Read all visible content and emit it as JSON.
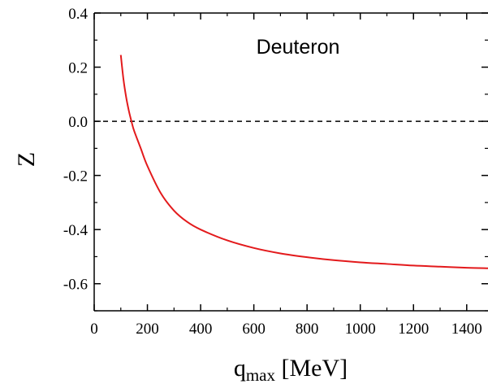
{
  "chart_data": {
    "type": "line",
    "title": "",
    "annotation": "Deuteron",
    "xlabel_main": "q",
    "xlabel_sub": "max",
    "xlabel_unit": " [MeV]",
    "ylabel": "Z",
    "xlim": [
      0,
      1480
    ],
    "ylim": [
      -0.7,
      0.4
    ],
    "x_ticks": [
      0,
      200,
      400,
      600,
      800,
      1000,
      1200,
      1400
    ],
    "x_tick_labels": [
      "0",
      "200",
      "400",
      "600",
      "800",
      "1000",
      "1200",
      "1400"
    ],
    "y_ticks": [
      0.4,
      0.2,
      0.0,
      -0.2,
      -0.4,
      -0.6
    ],
    "y_tick_labels": [
      "0.4",
      "0.2",
      "0.0",
      "-0.2",
      "-0.4",
      "-0.6"
    ],
    "reference_line": {
      "y": 0.0,
      "style": "dashed",
      "color": "#000000"
    },
    "series": [
      {
        "color": "#e31a1c",
        "x": [
          100,
          110,
          120,
          130,
          140,
          150,
          175,
          200,
          250,
          300,
          350,
          400,
          500,
          600,
          700,
          800,
          900,
          1000,
          1100,
          1200,
          1300,
          1400,
          1480
        ],
        "y": [
          0.245,
          0.155,
          0.09,
          0.04,
          0.0,
          -0.035,
          -0.1,
          -0.165,
          -0.265,
          -0.33,
          -0.372,
          -0.4,
          -0.44,
          -0.468,
          -0.488,
          -0.502,
          -0.513,
          -0.521,
          -0.527,
          -0.533,
          -0.537,
          -0.541,
          -0.543
        ]
      }
    ]
  }
}
